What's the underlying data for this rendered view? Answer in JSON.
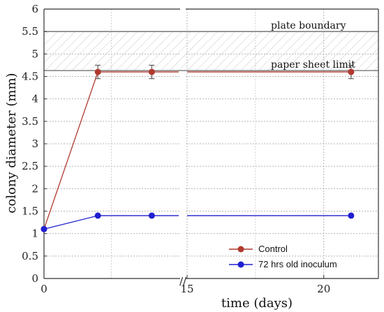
{
  "chart_data": {
    "type": "line",
    "xlabel": "time (days)",
    "ylabel": "colony diameter (mm)",
    "ylim": [
      0,
      6
    ],
    "y_ticks": [
      "0",
      "0.5",
      "1",
      "1.5",
      "2",
      "2.5",
      "3",
      "3.5",
      "4",
      "4.5",
      "5",
      "5.5",
      "6"
    ],
    "x_ticks": [
      "0",
      "15",
      "20"
    ],
    "x_axis_break": "//",
    "x_segments": [
      {
        "range": [
          0,
          5
        ],
        "note": "compressed early segment before axis break"
      },
      {
        "range": [
          15,
          22
        ]
      }
    ],
    "x": [
      0,
      2,
      4,
      21
    ],
    "grid": true,
    "legend_position": "bottom-right",
    "series": [
      {
        "name": "Control",
        "color": "#b03a2e",
        "x": [
          0,
          2,
          4,
          21
        ],
        "values": [
          1.1,
          4.6,
          4.6,
          4.6
        ],
        "error": [
          0,
          0.15,
          0.15,
          0.15
        ]
      },
      {
        "name": "72 hrs old inoculum",
        "color": "#1f1fd0",
        "x": [
          0,
          2,
          4,
          21
        ],
        "values": [
          1.1,
          1.4,
          1.4,
          1.4
        ],
        "error": [
          0,
          0,
          0,
          0
        ]
      }
    ],
    "reference_lines": [
      {
        "label": "plate boundary",
        "y": 5.5
      },
      {
        "label": "paper sheet limit",
        "y": 4.63
      }
    ],
    "hatched_band": [
      4.63,
      5.5
    ]
  }
}
